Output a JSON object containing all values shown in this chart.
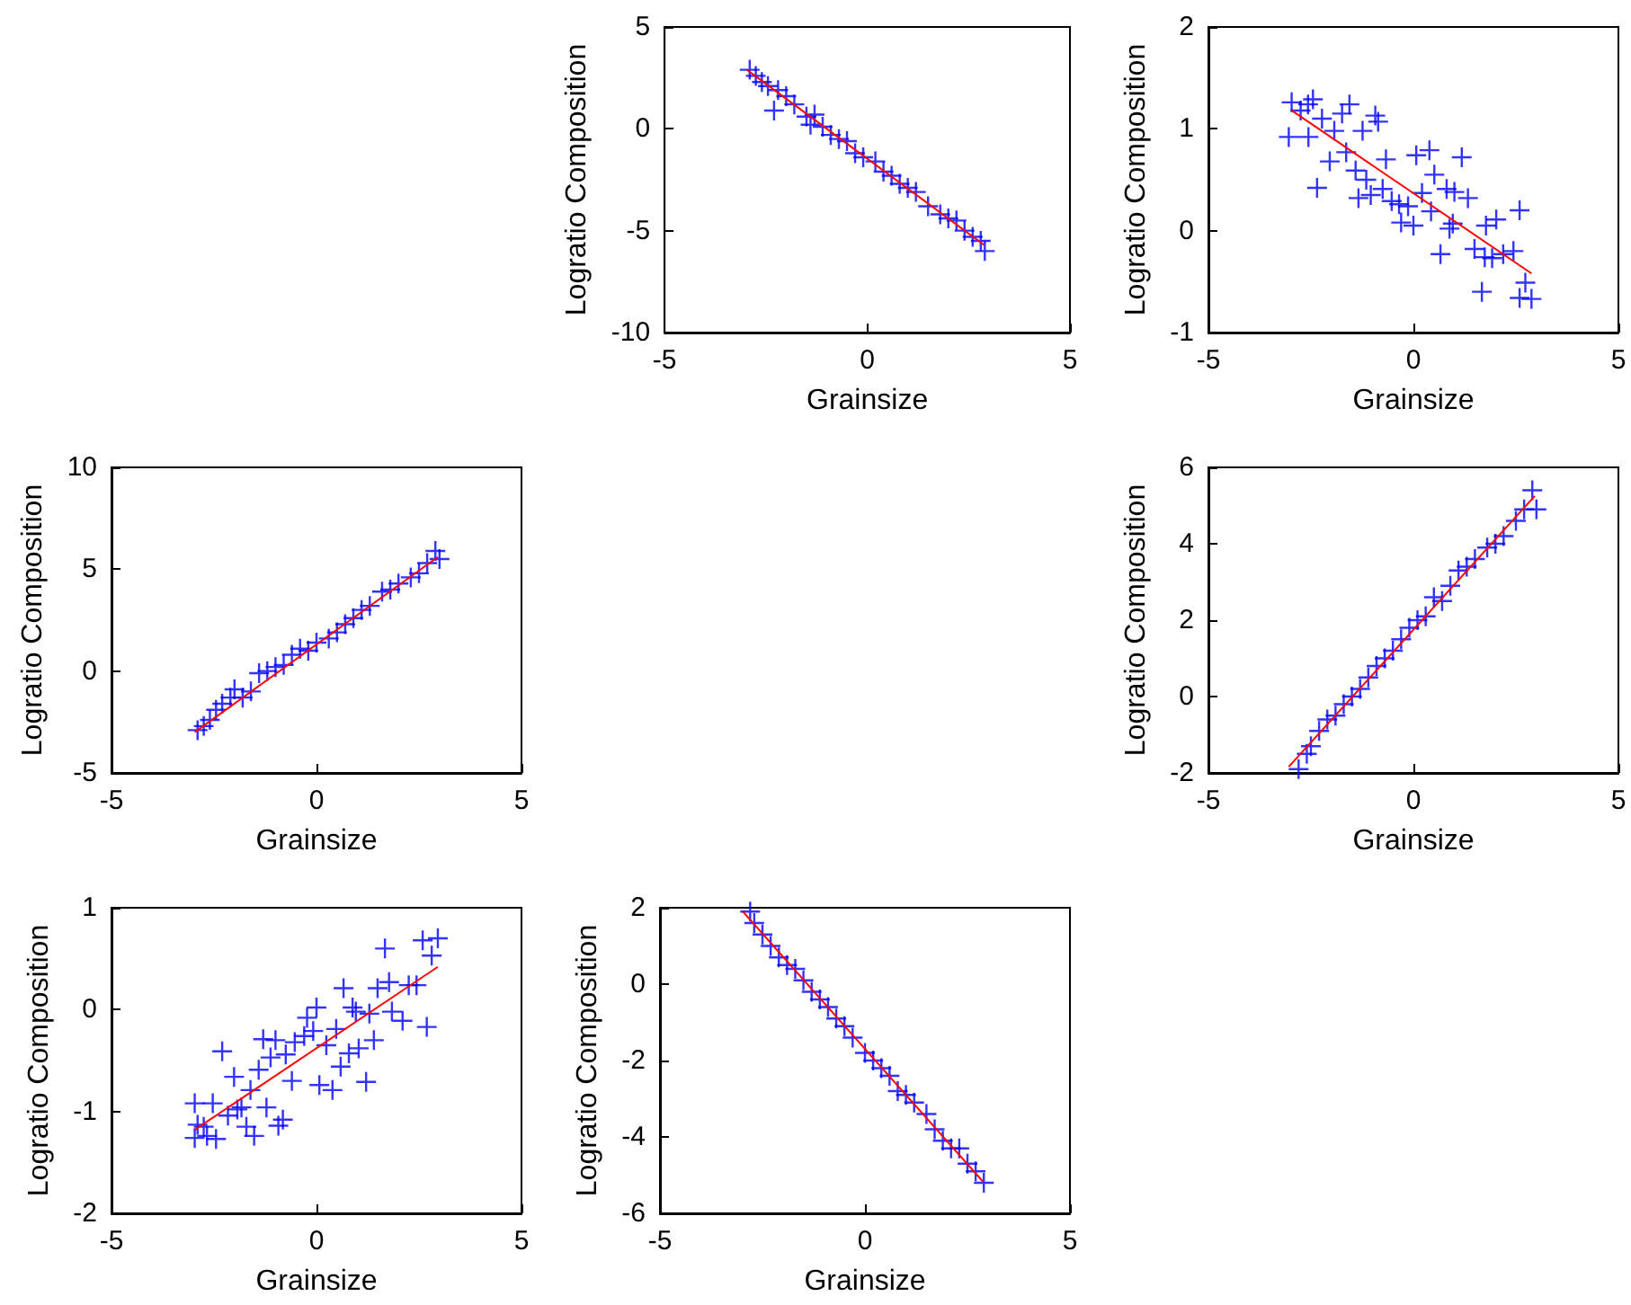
{
  "chart_data": [
    {
      "type": "scatter",
      "xlabel": "Grainsize",
      "ylabel": "Logratio Composition",
      "xlim": [
        -5,
        5
      ],
      "xticks": [
        -5,
        0,
        5
      ],
      "ylim": [
        -10,
        5
      ],
      "yticks": [
        -10,
        -5,
        0,
        5
      ],
      "marker": "cross",
      "series": [
        {
          "color": "#0000ff",
          "x": [
            -2.9,
            -2.75,
            -2.6,
            -2.45,
            -2.3,
            -2.2,
            -2.0,
            -1.8,
            -1.5,
            -1.4,
            -1.3,
            -1.1,
            -0.9,
            -0.7,
            -0.5,
            -0.3,
            -0.1,
            0.2,
            0.4,
            0.6,
            0.8,
            1.0,
            1.2,
            1.5,
            1.8,
            2.0,
            2.2,
            2.4,
            2.6,
            2.8,
            2.9
          ],
          "values": [
            2.9,
            2.6,
            2.3,
            2.1,
            0.9,
            1.9,
            1.6,
            1.2,
            0.6,
            0.2,
            0.7,
            0.1,
            -0.3,
            -0.5,
            -0.6,
            -1.2,
            -1.4,
            -1.6,
            -2.1,
            -2.3,
            -2.7,
            -2.9,
            -3.1,
            -3.8,
            -4.2,
            -4.4,
            -4.5,
            -5.0,
            -5.3,
            -5.5,
            -6.0
          ]
        },
        {
          "type": "line",
          "marker": "none",
          "color": "#ff0000",
          "x": [
            -2.97,
            2.88
          ],
          "values": [
            2.9,
            -5.7
          ]
        }
      ]
    },
    {
      "type": "scatter",
      "xlabel": "Grainsize",
      "ylabel": "Logratio Composition",
      "xlim": [
        -5,
        5
      ],
      "xticks": [
        -5,
        0,
        5
      ],
      "ylim": [
        -1,
        2
      ],
      "yticks": [
        -1,
        0,
        1,
        2
      ],
      "marker": "cross",
      "series": [
        {
          "color": "#0000ff",
          "x": [
            -2.97,
            -2.75,
            -2.45,
            -2.57,
            -3.04,
            -2.56,
            -2.23,
            -1.93,
            -1.56,
            -1.74,
            -1.24,
            -0.93,
            -0.86,
            -2.04,
            -1.64,
            -1.41,
            -2.35,
            -1.15,
            -0.67,
            0.07,
            0.39,
            1.18,
            0.51,
            0.81,
            1.0,
            1.33,
            -1.34,
            -1.04,
            -0.75,
            -0.53,
            -0.35,
            -0.13,
            -0.3,
            0.0,
            0.21,
            0.43,
            0.88,
            0.96,
            0.66,
            1.49,
            1.77,
            2.02,
            2.59,
            1.74,
            1.92,
            2.19,
            2.44,
            1.67,
            2.73,
            2.59,
            2.88
          ],
          "values": [
            1.26,
            1.18,
            1.29,
            1.24,
            0.92,
            0.92,
            1.1,
            0.98,
            1.24,
            1.15,
            0.98,
            1.13,
            1.07,
            0.68,
            0.77,
            0.59,
            0.42,
            0.5,
            0.7,
            0.74,
            0.79,
            0.72,
            0.55,
            0.41,
            0.38,
            0.32,
            0.32,
            0.35,
            0.41,
            0.29,
            0.26,
            0.24,
            0.08,
            0.05,
            0.37,
            0.19,
            0.02,
            0.07,
            -0.23,
            -0.18,
            0.05,
            0.11,
            0.2,
            -0.26,
            -0.27,
            -0.23,
            -0.2,
            -0.6,
            -0.51,
            -0.66,
            -0.67
          ]
        },
        {
          "type": "line",
          "marker": "none",
          "color": "#ff0000",
          "x": [
            -2.97,
            2.88
          ],
          "values": [
            1.18,
            -0.42
          ]
        }
      ]
    },
    {
      "type": "scatter",
      "xlabel": "Grainsize",
      "ylabel": "Logratio Composition",
      "xlim": [
        -5,
        5
      ],
      "xticks": [
        -5,
        0,
        5
      ],
      "ylim": [
        -5,
        10
      ],
      "yticks": [
        -5,
        0,
        5,
        10
      ],
      "marker": "cross",
      "series": [
        {
          "color": "#0000ff",
          "x": [
            -2.9,
            -2.75,
            -2.6,
            -2.45,
            -2.3,
            -2.1,
            -2.0,
            -1.8,
            -1.6,
            -1.4,
            -1.2,
            -1.0,
            -0.8,
            -0.6,
            -0.4,
            -0.2,
            0.0,
            0.3,
            0.5,
            0.7,
            0.9,
            1.1,
            1.3,
            1.6,
            1.8,
            2.0,
            2.3,
            2.5,
            2.7,
            2.9,
            3.0
          ],
          "values": [
            -2.9,
            -2.7,
            -2.4,
            -1.9,
            -1.6,
            -1.3,
            -0.9,
            -1.3,
            -1.0,
            -0.1,
            0.0,
            0.2,
            0.3,
            0.8,
            1.1,
            1.0,
            1.4,
            1.6,
            1.9,
            2.3,
            2.6,
            3.0,
            3.2,
            3.9,
            4.0,
            4.3,
            4.6,
            4.8,
            5.3,
            5.9,
            5.5
          ]
        },
        {
          "type": "line",
          "marker": "none",
          "color": "#ff0000",
          "x": [
            -2.97,
            2.96
          ],
          "values": [
            -3.0,
            5.6
          ]
        }
      ]
    },
    {
      "type": "scatter",
      "xlabel": "Grainsize",
      "ylabel": "Logratio Composition",
      "xlim": [
        -5,
        5
      ],
      "xticks": [
        -5,
        0,
        5
      ],
      "ylim": [
        -2,
        6
      ],
      "yticks": [
        -2,
        0,
        2,
        4,
        6
      ],
      "marker": "cross",
      "series": [
        {
          "color": "#0000ff",
          "x": [
            -2.8,
            -2.6,
            -2.5,
            -2.3,
            -2.1,
            -1.9,
            -1.7,
            -1.5,
            -1.3,
            -1.1,
            -0.9,
            -0.7,
            -0.5,
            -0.3,
            -0.1,
            0.1,
            0.3,
            0.5,
            0.7,
            0.9,
            1.1,
            1.3,
            1.5,
            1.8,
            2.0,
            2.2,
            2.5,
            2.7,
            2.9,
            3.0
          ],
          "values": [
            -1.9,
            -1.5,
            -1.3,
            -0.9,
            -0.6,
            -0.5,
            -0.2,
            0.0,
            0.2,
            0.5,
            0.8,
            1.0,
            1.2,
            1.5,
            1.8,
            2.0,
            2.1,
            2.6,
            2.5,
            2.9,
            3.3,
            3.4,
            3.6,
            3.9,
            4.0,
            4.2,
            4.6,
            4.9,
            5.4,
            4.9
          ]
        },
        {
          "type": "line",
          "marker": "none",
          "color": "#ff0000",
          "x": [
            -3.04,
            2.96
          ],
          "values": [
            -1.84,
            5.25
          ]
        }
      ]
    },
    {
      "type": "scatter",
      "xlabel": "Grainsize",
      "ylabel": "Logratio Composition",
      "xlim": [
        -5,
        5
      ],
      "xticks": [
        -5,
        0,
        5
      ],
      "ylim": [
        -2,
        1
      ],
      "yticks": [
        -2,
        -1,
        0,
        1
      ],
      "marker": "cross",
      "series": [
        {
          "color": "#0000ff",
          "x": [
            -2.97,
            -2.53,
            -2.9,
            -2.75,
            -2.97,
            -2.45,
            -2.67,
            -2.16,
            -1.93,
            -1.83,
            -1.71,
            -1.52,
            -1.22,
            -0.82,
            -0.93,
            -2.3,
            -2.01,
            -1.61,
            -1.41,
            -1.3,
            -1.0,
            -1.12,
            -0.75,
            -0.53,
            -0.3,
            -0.23,
            0.0,
            -0.08,
            -0.6,
            0.07,
            0.39,
            0.24,
            0.59,
            0.79,
            1.03,
            1.4,
            1.21,
            0.48,
            0.88,
            0.96,
            0.66,
            1.29,
            1.49,
            1.84,
            2.1,
            2.69,
            1.67,
            1.77,
            2.25,
            2.44,
            2.59,
            2.96,
            2.81
          ],
          "values": [
            -0.92,
            -0.92,
            -1.13,
            -1.15,
            -1.26,
            -1.27,
            -1.24,
            -1.04,
            -0.98,
            -0.96,
            -1.15,
            -1.24,
            -0.96,
            -1.08,
            -1.14,
            -0.41,
            -0.66,
            -0.79,
            -0.59,
            -0.29,
            -0.3,
            -0.47,
            -0.44,
            -0.32,
            -0.26,
            -0.08,
            0.02,
            -0.21,
            -0.7,
            -0.74,
            -0.79,
            -0.35,
            -0.56,
            -0.43,
            -0.38,
            -0.3,
            -0.71,
            -0.19,
            0.02,
            -0.02,
            0.21,
            -0.04,
            0.21,
            -0.02,
            -0.11,
            -0.17,
            0.6,
            0.27,
            0.24,
            0.24,
            0.68,
            0.7,
            0.53
          ]
        },
        {
          "type": "line",
          "marker": "none",
          "color": "#ff0000",
          "x": [
            -2.97,
            2.96
          ],
          "values": [
            -1.18,
            0.42
          ]
        }
      ]
    },
    {
      "type": "scatter",
      "xlabel": "Grainsize",
      "ylabel": "Logratio Composition",
      "xlim": [
        -5,
        5
      ],
      "xticks": [
        -5,
        0,
        5
      ],
      "ylim": [
        -6,
        2
      ],
      "yticks": [
        -6,
        -4,
        -2,
        0,
        2
      ],
      "marker": "cross",
      "series": [
        {
          "color": "#0000ff",
          "x": [
            -2.8,
            -2.7,
            -2.5,
            -2.3,
            -2.1,
            -1.9,
            -1.7,
            -1.5,
            -1.3,
            -1.1,
            -0.9,
            -0.7,
            -0.5,
            -0.3,
            0.0,
            0.2,
            0.4,
            0.6,
            0.8,
            1.0,
            1.2,
            1.5,
            1.7,
            1.9,
            2.1,
            2.3,
            2.5,
            2.7,
            2.9
          ],
          "values": [
            1.9,
            1.6,
            1.3,
            1.0,
            0.7,
            0.5,
            0.4,
            0.1,
            -0.2,
            -0.4,
            -0.6,
            -0.9,
            -1.1,
            -1.4,
            -1.8,
            -2.0,
            -2.2,
            -2.4,
            -2.8,
            -2.9,
            -3.1,
            -3.4,
            -3.8,
            -4.1,
            -4.3,
            -4.3,
            -4.7,
            -4.9,
            -5.2
          ]
        },
        {
          "type": "line",
          "marker": "none",
          "color": "#ff0000",
          "x": [
            -2.97,
            2.88
          ],
          "values": [
            1.89,
            -5.17
          ]
        }
      ]
    }
  ]
}
